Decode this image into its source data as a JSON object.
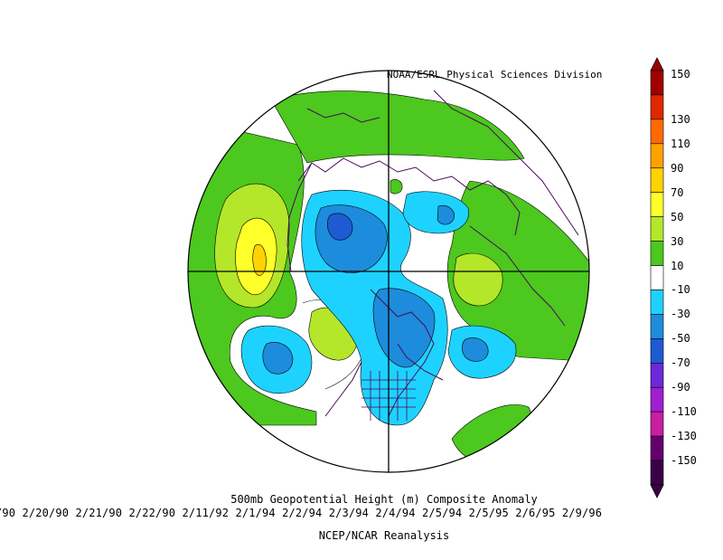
{
  "header": {
    "credit": "NOAA/ESRL Physical Sciences Division"
  },
  "title": "500mb Geopotential Height (m) Composite Anomaly",
  "dates_line": "/90 2/20/90 2/21/90 2/22/90 2/11/92 2/1/94 2/2/94 2/3/94 2/4/94 2/5/94 2/5/95 2/6/95 2/9/96",
  "source": "NCEP/NCAR Reanalysis",
  "colorbar": {
    "labels": [
      "150",
      "130",
      "110",
      "90",
      "70",
      "50",
      "30",
      "10",
      "-10",
      "-30",
      "-50",
      "-70",
      "-90",
      "-110",
      "-130",
      "-150"
    ],
    "colors": [
      "#a00000",
      "#e02800",
      "#ff6a00",
      "#ffa200",
      "#ffd200",
      "#ffff2a",
      "#b4e62a",
      "#4cc81e",
      "#ffffff",
      "#1ed2ff",
      "#1e8cdc",
      "#1e5ad2",
      "#6e28dc",
      "#a01ed2",
      "#c81ea0",
      "#64006e",
      "#3c0046"
    ]
  },
  "map": {
    "projection": "polar-stereographic",
    "hemisphere": "northern",
    "colors": {
      "green": "#4cc81e",
      "yellowgreen": "#b4e62a",
      "yellow": "#ffff2a",
      "orange": "#ffd200",
      "cyan": "#1ed2ff",
      "blue": "#1e8cdc",
      "darkblue": "#1e5ad2",
      "outline": "#000000"
    }
  }
}
